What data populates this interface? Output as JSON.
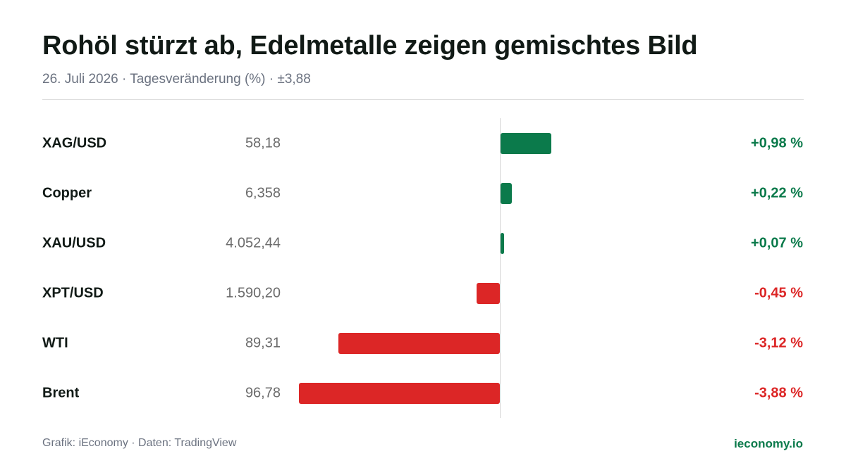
{
  "title": "Rohöl stürzt ab, Edelmetalle zeigen gemischtes Bild",
  "subtitle": "26. Juli 2026 · Tagesveränderung (%) · ±3,88",
  "footer": {
    "source": "Grafik: iEconomy · Daten: TradingView",
    "site": "ieconomy.io"
  },
  "colors": {
    "positive": "#0b7a4b",
    "negative": "#dc2626"
  },
  "chart_data": {
    "type": "bar",
    "orientation": "horizontal",
    "xlim": [
      -3.88,
      3.88
    ],
    "categories": [
      "XAG/USD",
      "Copper",
      "XAU/USD",
      "XPT/USD",
      "WTI",
      "Brent"
    ],
    "prices": [
      "58,18",
      "6,358",
      "4.052,44",
      "1.590,20",
      "89,31",
      "96,78"
    ],
    "values": [
      0.98,
      0.22,
      0.07,
      -0.45,
      -3.12,
      -3.88
    ],
    "value_labels": [
      "+0,98 %",
      "+0,22 %",
      "+0,07 %",
      "-0,45 %",
      "-3,12 %",
      "-3,88 %"
    ]
  }
}
